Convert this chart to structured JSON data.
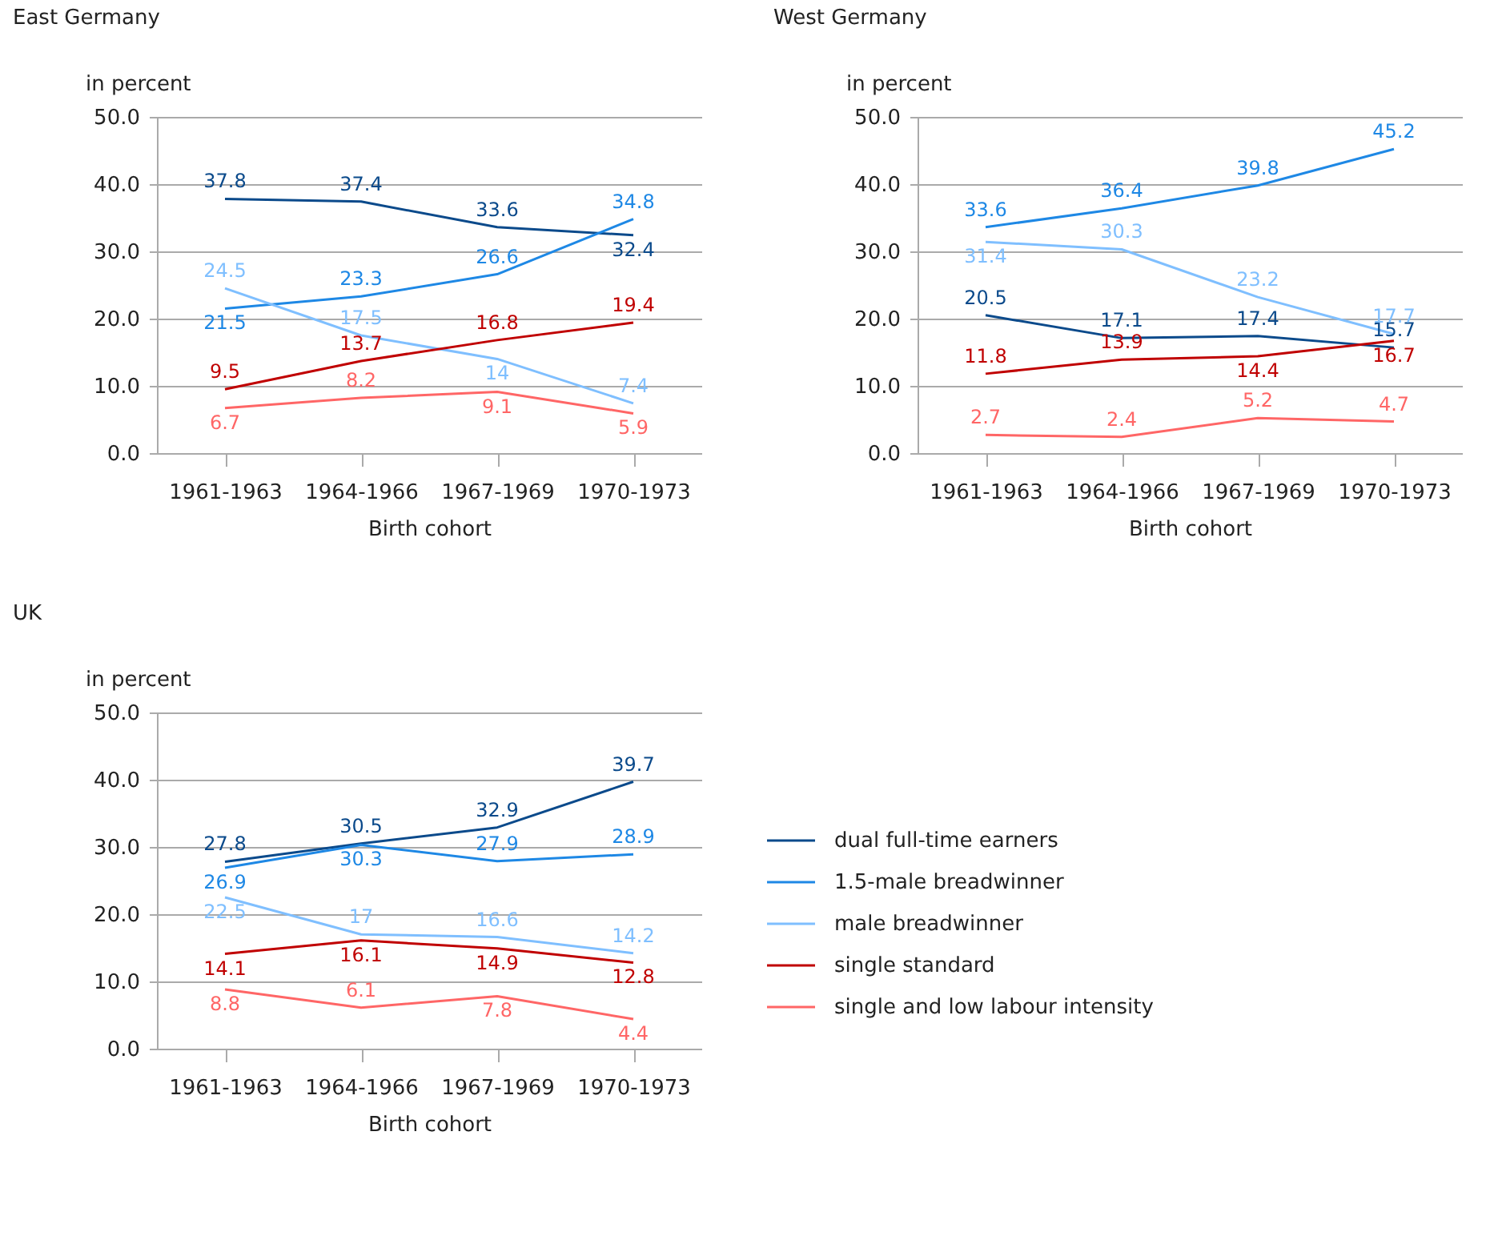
{
  "chart_data": [
    {
      "type": "line",
      "title": "East Germany",
      "ylabel": "in percent",
      "xlabel": "Birth cohort",
      "categories": [
        "1961-1963",
        "1964-1966",
        "1967-1969",
        "1970-1973"
      ],
      "ylim": [
        0,
        50
      ],
      "yticks": [
        {
          "value": 0,
          "label": "0.0"
        },
        {
          "value": 10,
          "label": "10.0"
        },
        {
          "value": 20,
          "label": "20.0"
        },
        {
          "value": 30,
          "label": "30.0"
        },
        {
          "value": 40,
          "label": "40.0"
        },
        {
          "value": 50,
          "label": "50.0"
        }
      ],
      "grid": "y",
      "data_labels": true,
      "marker": "none",
      "series": [
        {
          "color": "#0b4a8b",
          "values": [
            37.8,
            37.4,
            33.6,
            32.4
          ]
        },
        {
          "color": "#1e88e5",
          "values": [
            21.5,
            23.3,
            26.6,
            34.8
          ]
        },
        {
          "color": "#7fbfff",
          "values": [
            24.5,
            17.5,
            14,
            7.4
          ]
        },
        {
          "color": "#c00000",
          "values": [
            9.5,
            13.7,
            16.8,
            19.4
          ]
        },
        {
          "color": "#ff6666",
          "values": [
            6.7,
            8.2,
            9.1,
            5.9
          ]
        }
      ]
    },
    {
      "type": "line",
      "title": "West Germany",
      "ylabel": "in percent",
      "xlabel": "Birth cohort",
      "categories": [
        "1961-1963",
        "1964-1966",
        "1967-1969",
        "1970-1973"
      ],
      "ylim": [
        0,
        50
      ],
      "yticks": [
        {
          "value": 0,
          "label": "0.0"
        },
        {
          "value": 10,
          "label": "10.0"
        },
        {
          "value": 20,
          "label": "20.0"
        },
        {
          "value": 30,
          "label": "30.0"
        },
        {
          "value": 40,
          "label": "40.0"
        },
        {
          "value": 50,
          "label": "50.0"
        }
      ],
      "grid": "y",
      "data_labels": true,
      "marker": "none",
      "series": [
        {
          "color": "#0b4a8b",
          "values": [
            20.5,
            17.1,
            17.4,
            15.7
          ]
        },
        {
          "color": "#1e88e5",
          "values": [
            33.6,
            36.4,
            39.8,
            45.2
          ]
        },
        {
          "color": "#7fbfff",
          "values": [
            31.4,
            30.3,
            23.2,
            17.7
          ]
        },
        {
          "color": "#c00000",
          "values": [
            11.8,
            13.9,
            14.4,
            16.7
          ]
        },
        {
          "color": "#ff6666",
          "values": [
            2.7,
            2.4,
            5.2,
            4.7
          ]
        }
      ]
    },
    {
      "type": "line",
      "title": "UK",
      "ylabel": "in percent",
      "xlabel": "Birth cohort",
      "categories": [
        "1961-1963",
        "1964-1966",
        "1967-1969",
        "1970-1973"
      ],
      "ylim": [
        0,
        50
      ],
      "yticks": [
        {
          "value": 0,
          "label": "0.0"
        },
        {
          "value": 10,
          "label": "10.0"
        },
        {
          "value": 20,
          "label": "20.0"
        },
        {
          "value": 30,
          "label": "30.0"
        },
        {
          "value": 40,
          "label": "40.0"
        },
        {
          "value": 50,
          "label": "50.0"
        }
      ],
      "grid": "y",
      "data_labels": true,
      "legend": "right",
      "marker": "none",
      "series": [
        {
          "name": "dual full-time earners",
          "color": "#0b4a8b",
          "values": [
            27.8,
            30.5,
            32.9,
            39.7
          ]
        },
        {
          "name": "1.5-male breadwinner",
          "color": "#1e88e5",
          "values": [
            26.9,
            30.3,
            27.9,
            28.9
          ]
        },
        {
          "name": "male breadwinner",
          "color": "#7fbfff",
          "values": [
            22.5,
            17,
            16.6,
            14.2
          ]
        },
        {
          "name": "single standard",
          "color": "#c00000",
          "values": [
            14.1,
            16.1,
            14.9,
            12.8
          ]
        },
        {
          "name": "single and low labour intensity",
          "color": "#ff6666",
          "values": [
            8.8,
            6.1,
            7.8,
            4.4
          ]
        }
      ]
    }
  ]
}
